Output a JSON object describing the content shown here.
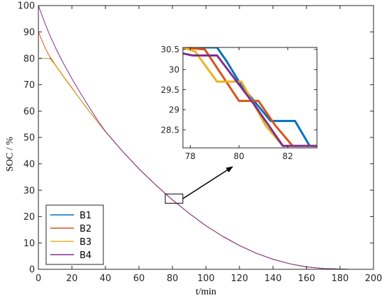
{
  "chart_data": [
    {
      "type": "line",
      "xlabel": "t/min",
      "ylabel": "SOC / %",
      "xlim": [
        0,
        200
      ],
      "ylim": [
        0,
        100
      ],
      "x_ticks": [
        0,
        20,
        40,
        60,
        80,
        100,
        120,
        140,
        160,
        180,
        200
      ],
      "y_ticks": [
        0,
        10,
        20,
        30,
        40,
        50,
        60,
        70,
        80,
        90,
        100
      ],
      "grid": false,
      "legend_position": "bottom-left",
      "series": [
        {
          "name": "B1",
          "color": "#0072BD",
          "x": [
            0,
            2,
            4,
            6,
            7,
            10,
            15,
            20,
            25,
            30,
            35,
            40,
            50,
            60,
            70,
            80,
            84,
            90,
            100,
            110,
            120,
            130,
            140,
            150,
            160,
            170,
            180,
            186,
            200
          ],
          "y": [
            80,
            80,
            80,
            80,
            80,
            77.5,
            73.0,
            68.8,
            64.4,
            60.2,
            56.1,
            52.2,
            44.9,
            38.1,
            32.0,
            26.3,
            24.3,
            21.2,
            16.5,
            12.5,
            9.0,
            6.1,
            3.8,
            2.1,
            0.9,
            0.3,
            0.1,
            0,
            0
          ]
        },
        {
          "name": "B2",
          "color": "#D95319",
          "x": [
            0,
            2,
            4,
            6,
            7,
            10,
            15,
            20,
            25,
            30,
            35,
            40,
            50,
            60,
            70,
            80,
            84,
            90,
            100,
            110,
            120,
            130,
            140,
            150,
            160,
            170,
            180,
            186,
            200
          ],
          "y": [
            90,
            87,
            84,
            81.5,
            80.5,
            77.6,
            73.1,
            68.8,
            64.4,
            60.2,
            56.1,
            52.2,
            44.9,
            38.1,
            32.0,
            26.3,
            24.3,
            21.2,
            16.5,
            12.5,
            9.0,
            6.1,
            3.8,
            2.1,
            0.9,
            0.3,
            0.1,
            0,
            0
          ]
        },
        {
          "name": "B3",
          "color": "#EDB120",
          "x": [
            0,
            2,
            4,
            6,
            7,
            10,
            15,
            20,
            25,
            30,
            35,
            40,
            50,
            60,
            70,
            80,
            84,
            90,
            100,
            110,
            120,
            130,
            140,
            150,
            160,
            170,
            180,
            186,
            200
          ],
          "y": [
            80,
            80,
            80,
            80,
            79.8,
            77.4,
            72.9,
            68.6,
            64.3,
            60.1,
            56.1,
            52.2,
            44.9,
            38.1,
            32.0,
            26.3,
            24.3,
            21.2,
            16.5,
            12.5,
            9.0,
            6.1,
            3.8,
            2.1,
            0.9,
            0.3,
            0.1,
            0,
            0
          ]
        },
        {
          "name": "B4",
          "color": "#7E2F8E",
          "x": [
            0,
            2,
            4,
            6,
            7,
            10,
            15,
            20,
            25,
            30,
            35,
            40,
            50,
            60,
            70,
            80,
            84,
            90,
            100,
            110,
            120,
            130,
            140,
            150,
            160,
            170,
            180,
            186,
            200
          ],
          "y": [
            100,
            96.5,
            93.2,
            90.0,
            88.5,
            84.3,
            78.0,
            72.3,
            66.9,
            61.8,
            56.8,
            52.3,
            44.9,
            38.1,
            32.0,
            26.3,
            24.3,
            21.2,
            16.5,
            12.5,
            9.0,
            6.1,
            3.8,
            2.1,
            0.9,
            0.3,
            0.1,
            0,
            0
          ]
        }
      ]
    },
    {
      "type": "line",
      "xlim": [
        77.7,
        83.2
      ],
      "ylim": [
        28.05,
        30.55
      ],
      "x_ticks": [
        78,
        80,
        82
      ],
      "y_ticks": [
        28.5,
        29,
        29.5,
        30,
        30.5
      ],
      "series": [
        {
          "name": "B1",
          "color": "#0072BD",
          "x": [
            77.7,
            79.1,
            79.5,
            80.1,
            81.3,
            82.3,
            82.9,
            83.2
          ],
          "y": [
            30.55,
            30.55,
            30.2,
            29.6,
            28.72,
            28.72,
            28.1,
            28.1
          ]
        },
        {
          "name": "B2",
          "color": "#D95319",
          "x": [
            77.7,
            78.6,
            80.0,
            80.8,
            81.5,
            82.2,
            83.2
          ],
          "y": [
            30.55,
            30.5,
            29.22,
            29.22,
            28.6,
            28.1,
            28.1
          ]
        },
        {
          "name": "B3",
          "color": "#EDB120",
          "x": [
            77.7,
            78.2,
            79.1,
            80.1,
            81.1,
            81.8,
            83.2
          ],
          "y": [
            30.55,
            30.45,
            29.7,
            29.7,
            28.6,
            28.1,
            28.1
          ]
        },
        {
          "name": "B4",
          "color": "#7E2F8E",
          "x": [
            77.7,
            78.1,
            79.1,
            80.6,
            81.8,
            82.2,
            82.8,
            83.2
          ],
          "y": [
            30.4,
            30.35,
            30.35,
            29.15,
            28.1,
            28.1,
            28.1,
            28.1
          ]
        }
      ]
    }
  ]
}
